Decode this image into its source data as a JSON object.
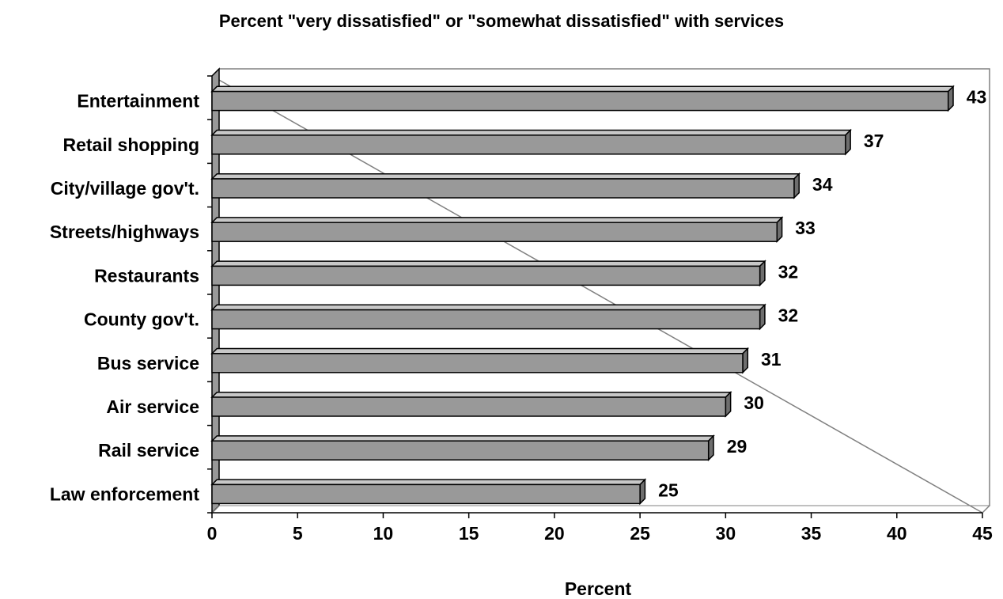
{
  "chart_data": {
    "type": "bar",
    "orientation": "horizontal",
    "title": "Percent \"very dissatisfied\" or \"somewhat dissatisfied\" with services",
    "xlabel": "Percent",
    "ylabel": "",
    "categories": [
      "Entertainment",
      "Retail shopping",
      "City/village gov't.",
      "Streets/highways",
      "Restaurants",
      "County gov't.",
      "Bus service",
      "Air service",
      "Rail service",
      "Law enforcement"
    ],
    "values": [
      43,
      37,
      34,
      33,
      32,
      32,
      31,
      30,
      29,
      25
    ],
    "data_labels": [
      "43",
      "37",
      "34",
      "33",
      "32",
      "32",
      "31",
      "30",
      "29",
      "25"
    ],
    "xlim": [
      0,
      45
    ],
    "xticks": [
      "0",
      "5",
      "10",
      "15",
      "20",
      "25",
      "30",
      "35",
      "40",
      "45"
    ],
    "grid": false,
    "legend": "none",
    "colors": {
      "bar_front": "#999999",
      "bar_top": "#c8c8c8",
      "bar_side": "#6e6e6e",
      "wall": "#999999",
      "outline": "#000000"
    }
  }
}
